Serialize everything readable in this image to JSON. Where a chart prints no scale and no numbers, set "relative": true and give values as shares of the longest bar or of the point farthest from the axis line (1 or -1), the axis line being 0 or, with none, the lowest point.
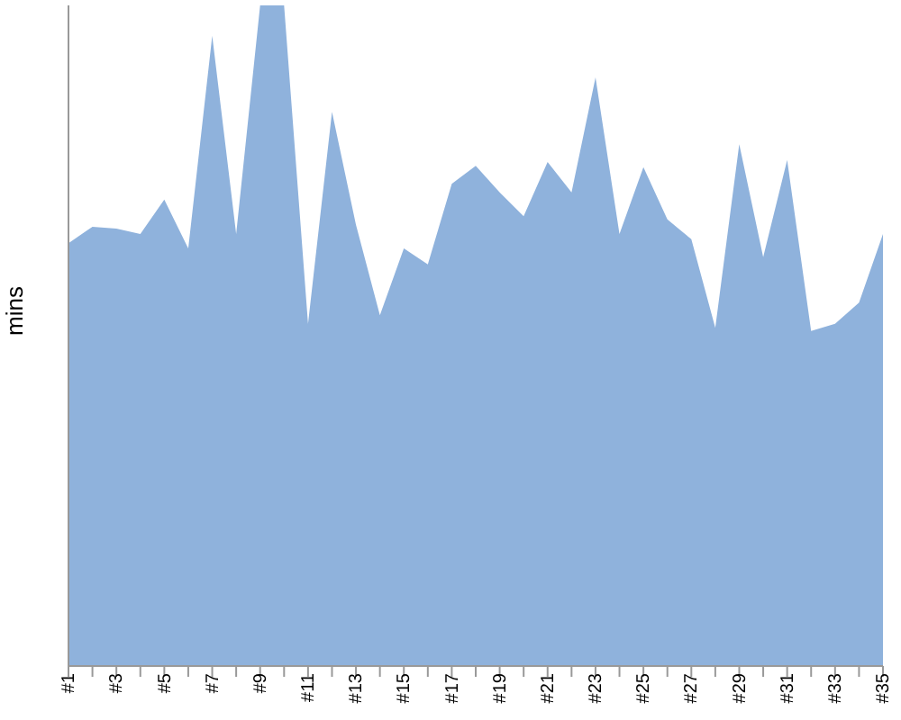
{
  "chart_data": {
    "type": "area",
    "ylabel": "mins",
    "relative": true,
    "color": "#8fb2dc",
    "categories": [
      "#1",
      null,
      "#3",
      null,
      "#5",
      null,
      "#7",
      null,
      "#9",
      null,
      "#11",
      null,
      "#13",
      null,
      "#15",
      null,
      "#17",
      null,
      "#19",
      null,
      "#21",
      null,
      "#23",
      null,
      "#25",
      null,
      "#27",
      null,
      "#29",
      null,
      "#31",
      null,
      "#33",
      null,
      "#35"
    ],
    "values": [
      0.64,
      0.665,
      0.662,
      0.654,
      0.706,
      0.632,
      0.954,
      0.654,
      1,
      1,
      0.518,
      0.839,
      0.668,
      0.531,
      0.632,
      0.608,
      0.73,
      0.757,
      0.717,
      0.681,
      0.763,
      0.717,
      0.891,
      0.654,
      0.755,
      0.676,
      0.646,
      0.512,
      0.79,
      0.619,
      0.766,
      0.507,
      0.518,
      0.55,
      0.654
    ]
  }
}
